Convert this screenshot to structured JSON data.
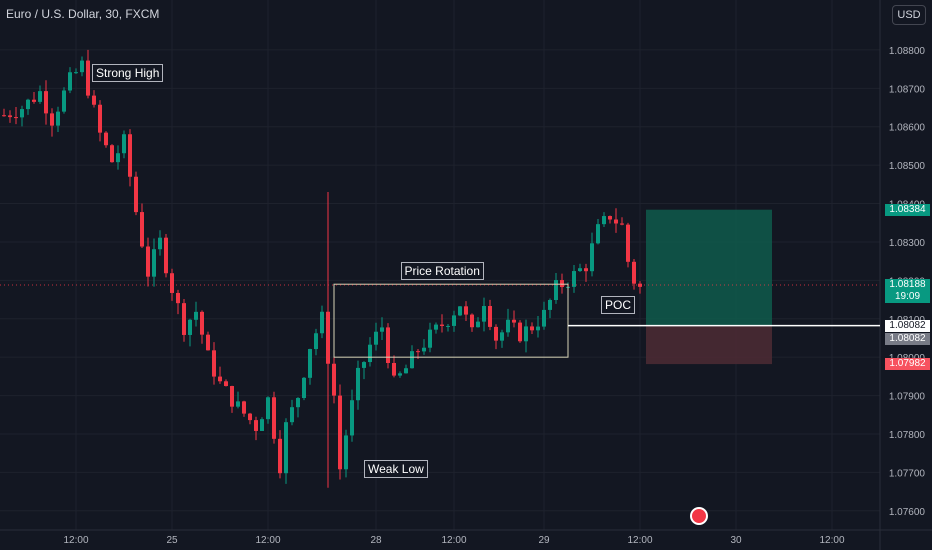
{
  "header": {
    "symbol": "Euro / U.S. Dollar, 30, FXCM"
  },
  "currency_button": "USD",
  "chart_data": {
    "type": "candlestick",
    "title": "Euro / U.S. Dollar, 30, FXCM",
    "ylim": [
      1.0755,
      1.0893
    ],
    "y_ticks": [
      "1.08800",
      "1.08700",
      "1.08600",
      "1.08500",
      "1.08400",
      "1.08300",
      "1.08200",
      "1.08100",
      "1.08000",
      "1.07900",
      "1.07800",
      "1.07700",
      "1.07600"
    ],
    "x_ticks": [
      {
        "label": "12:00",
        "bar": 12
      },
      {
        "label": "25",
        "bar": 28
      },
      {
        "label": "12:00",
        "bar": 44
      },
      {
        "label": "28",
        "bar": 62
      },
      {
        "label": "12:00",
        "bar": 75
      },
      {
        "label": "29",
        "bar": 90
      },
      {
        "label": "12:00",
        "bar": 106
      },
      {
        "label": "30",
        "bar": 122
      },
      {
        "label": "12:00",
        "bar": 138
      }
    ],
    "close_path": [
      [
        0,
        1.0863
      ],
      [
        3,
        1.0865
      ],
      [
        6,
        1.0869
      ],
      [
        8,
        1.0862
      ],
      [
        11,
        1.0872
      ],
      [
        13,
        1.0876
      ],
      [
        16,
        1.0858
      ],
      [
        18,
        1.0851
      ],
      [
        20,
        1.0856
      ],
      [
        22,
        1.0838
      ],
      [
        24,
        1.0822
      ],
      [
        26,
        1.083
      ],
      [
        28,
        1.0818
      ],
      [
        30,
        1.0808
      ],
      [
        32,
        1.0812
      ],
      [
        34,
        1.08
      ],
      [
        36,
        1.0793
      ],
      [
        39,
        1.0787
      ],
      [
        42,
        1.0782
      ],
      [
        44,
        1.0789
      ],
      [
        46,
        1.0772
      ],
      [
        47,
        1.0782
      ],
      [
        49,
        1.079
      ],
      [
        51,
        1.0803
      ],
      [
        53,
        1.081
      ],
      [
        55,
        1.079
      ],
      [
        56,
        1.0771
      ],
      [
        57,
        1.078
      ],
      [
        59,
        1.0795
      ],
      [
        61,
        1.0803
      ],
      [
        63,
        1.0808
      ],
      [
        65,
        1.0793
      ],
      [
        67,
        1.0797
      ],
      [
        69,
        1.0802
      ],
      [
        72,
        1.0807
      ],
      [
        74,
        1.081
      ],
      [
        76,
        1.0814
      ],
      [
        78,
        1.0806
      ],
      [
        80,
        1.0815
      ],
      [
        82,
        1.0805
      ],
      [
        84,
        1.0808
      ],
      [
        86,
        1.0806
      ],
      [
        88,
        1.0808
      ],
      [
        90,
        1.0811
      ],
      [
        92,
        1.0818
      ],
      [
        94,
        1.082
      ],
      [
        97,
        1.0824
      ],
      [
        99,
        1.0833
      ],
      [
        101,
        1.0837
      ],
      [
        103,
        1.0834
      ],
      [
        104,
        1.0825
      ],
      [
        105,
        1.082
      ],
      [
        106,
        1.0818
      ]
    ],
    "last_bar": 106,
    "highlights": [
      {
        "bar": 54,
        "high": 1.0843,
        "low": 1.0766
      }
    ],
    "annotations": [
      {
        "text": "Strong High",
        "bar": 15,
        "price": 1.0874
      },
      {
        "text": "Price Rotation",
        "bar": 73,
        "price": 1.08225
      },
      {
        "text": "Weak Low",
        "bar": 61,
        "price": 1.0771
      },
      {
        "text": "POC",
        "bar": 101,
        "price": 1.08135
      }
    ],
    "rotation_box": {
      "bar_start": 55,
      "bar_end": 94,
      "top": 1.0819,
      "bottom": 1.08
    },
    "poc_line": {
      "bar_start": 94,
      "price": 1.08082
    },
    "position": {
      "bar_start": 107,
      "bar_end": 128,
      "entry": 1.08082,
      "target": 1.08384,
      "stop": 1.07982
    },
    "price_tags": [
      {
        "label": "1.08384",
        "price": 1.08384,
        "color": "#089981"
      },
      {
        "label": "1.08188",
        "sub": "19:09",
        "price": 1.08188,
        "color": "#089981"
      },
      {
        "label": "1.08082",
        "price": 1.08082,
        "color": "#ffffff"
      },
      {
        "label": "1.08082",
        "price": 1.08082,
        "color": "#787b86"
      },
      {
        "label": "1.07982",
        "price": 1.07982,
        "color": "#f7525f"
      }
    ],
    "current_price": 1.08188,
    "colors": {
      "up": "#089981",
      "down": "#f23645",
      "background": "#131722",
      "grid": "#1e222d",
      "target": "#0f5a4b",
      "stop": "#4a2a33"
    }
  }
}
